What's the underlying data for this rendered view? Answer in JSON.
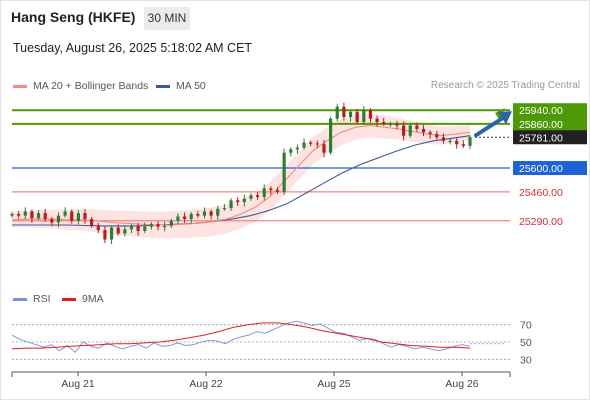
{
  "header": {
    "title": "Hang Seng (HKFE)",
    "timeframe": "30 MIN",
    "datetime": "Tuesday, August 26, 2025 5:18:02 AM CET"
  },
  "legend": {
    "items": [
      {
        "label": "MA 20 + Bollinger Bands",
        "color": "#f28b82"
      },
      {
        "label": "MA 50",
        "color": "#3d5a98"
      }
    ],
    "credit": "Research © 2025 Trading Central"
  },
  "rsi_legend": {
    "items": [
      {
        "label": "RSI",
        "color": "#7a8fd6"
      },
      {
        "label": "9MA",
        "color": "#e02020"
      }
    ]
  },
  "colors": {
    "resistance": "#4e9a06",
    "support_pivot": "#1e63d6",
    "support": "#ff8080",
    "bull_candle": "#2e7d32",
    "bear_candle": "#b71c1c",
    "band_fill": "#fde3e1",
    "arrow": "#2e63a8"
  },
  "chart_data": [
    {
      "type": "candlestick",
      "x_ticks": [
        "Aug 21",
        "Aug 22",
        "Aug 25",
        "Aug 26"
      ],
      "price_levels": [
        {
          "value": "25940.00",
          "kind": "resistance"
        },
        {
          "value": "25860.00",
          "kind": "resistance"
        },
        {
          "value": "25781.00",
          "kind": "last"
        },
        {
          "value": "25600.00",
          "kind": "pivot"
        },
        {
          "value": "25460.00",
          "kind": "support"
        },
        {
          "value": "25290.00",
          "kind": "support"
        }
      ],
      "ylim": [
        24930,
        26000
      ],
      "close_path": [
        25330,
        25320,
        25345,
        25305,
        25335,
        25300,
        25280,
        25320,
        25345,
        25290,
        25335,
        25300,
        25260,
        25235,
        25180,
        25250,
        25215,
        25240,
        25260,
        25230,
        25255,
        25270,
        25255,
        25260,
        25290,
        25315,
        25300,
        25330,
        25320,
        25345,
        25320,
        25360,
        25365,
        25410,
        25400,
        25420,
        25440,
        25430,
        25480,
        25470,
        25460,
        25690,
        25710,
        25720,
        25750,
        25745,
        25740,
        25690,
        25890,
        25960,
        25900,
        25930,
        25870,
        25940,
        25890,
        25870,
        25860,
        25860,
        25850,
        25790,
        25850,
        25830,
        25810,
        25800,
        25780,
        25760,
        25760,
        25740,
        25730,
        25781
      ],
      "ma20_path": [
        25295,
        25300,
        25300,
        25300,
        25295,
        25295,
        25290,
        25280,
        25275,
        25270,
        25265,
        25265,
        25270,
        25275,
        25285,
        25300,
        25330,
        25370,
        25430,
        25520,
        25610,
        25700,
        25760,
        25810,
        25840,
        25850,
        25840,
        25830,
        25815,
        25800,
        25790,
        25800,
        25810
      ],
      "ma50_path": [
        25265,
        25265,
        25265,
        25265,
        25262,
        25260,
        25260,
        25260,
        25265,
        25270,
        25275,
        25285,
        25300,
        25320,
        25350,
        25390,
        25450,
        25510,
        25570,
        25620,
        25660,
        25700,
        25735,
        25760,
        25775,
        25790
      ],
      "forecast": "up"
    },
    {
      "type": "line",
      "title": "RSI",
      "y_ticks": [
        "70",
        "50",
        "30"
      ],
      "ylim": [
        20,
        80
      ],
      "rsi_path": [
        58,
        53,
        50,
        47,
        44,
        47,
        40,
        46,
        38,
        50,
        45,
        43,
        49,
        45,
        42,
        45,
        47,
        43,
        49,
        45,
        46,
        49,
        46,
        47,
        50,
        52,
        51,
        48,
        53,
        56,
        58,
        62,
        60,
        64,
        68,
        72,
        74,
        72,
        69,
        71,
        66,
        61,
        60,
        56,
        52,
        54,
        53,
        48,
        44,
        47,
        45,
        42,
        44,
        42,
        40,
        42,
        45,
        47,
        45
      ],
      "rsi_ma_path": [
        42,
        43,
        43,
        44,
        45,
        46,
        47,
        48,
        48,
        49,
        50,
        52,
        55,
        58,
        62,
        67,
        70,
        72,
        72,
        70,
        67,
        63,
        60,
        57,
        54,
        50,
        48,
        46,
        45,
        44,
        44,
        43
      ]
    }
  ]
}
